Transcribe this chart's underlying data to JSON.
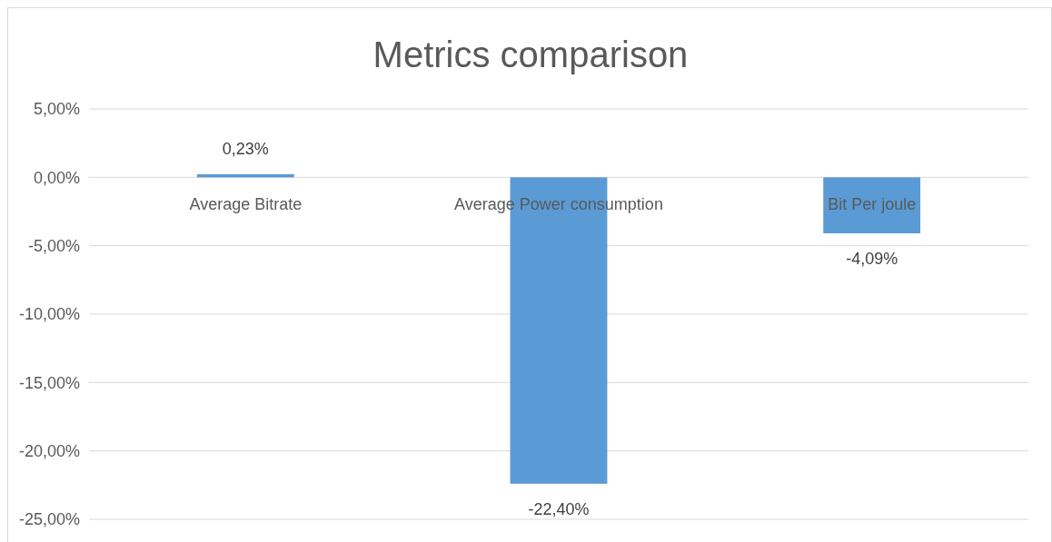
{
  "chart_data": {
    "type": "bar",
    "title": "Metrics comparison",
    "categories": [
      "Average Bitrate",
      "Average Power consumption",
      "Bit Per joule"
    ],
    "values": [
      0.23,
      -22.4,
      -4.09
    ],
    "value_labels": [
      "0,23%",
      "-22,40%",
      "-4,09%"
    ],
    "color": "#5b9bd5",
    "ylim": [
      -25,
      5
    ],
    "yticks": [
      {
        "value": 5,
        "label": "5,00%"
      },
      {
        "value": 0,
        "label": "0,00%"
      },
      {
        "value": -5,
        "label": "-5,00%"
      },
      {
        "value": -10,
        "label": "-10,00%"
      },
      {
        "value": -15,
        "label": "-15,00%"
      },
      {
        "value": -20,
        "label": "-20,00%"
      },
      {
        "value": -25,
        "label": "-25,00%"
      }
    ],
    "grid": "y"
  }
}
